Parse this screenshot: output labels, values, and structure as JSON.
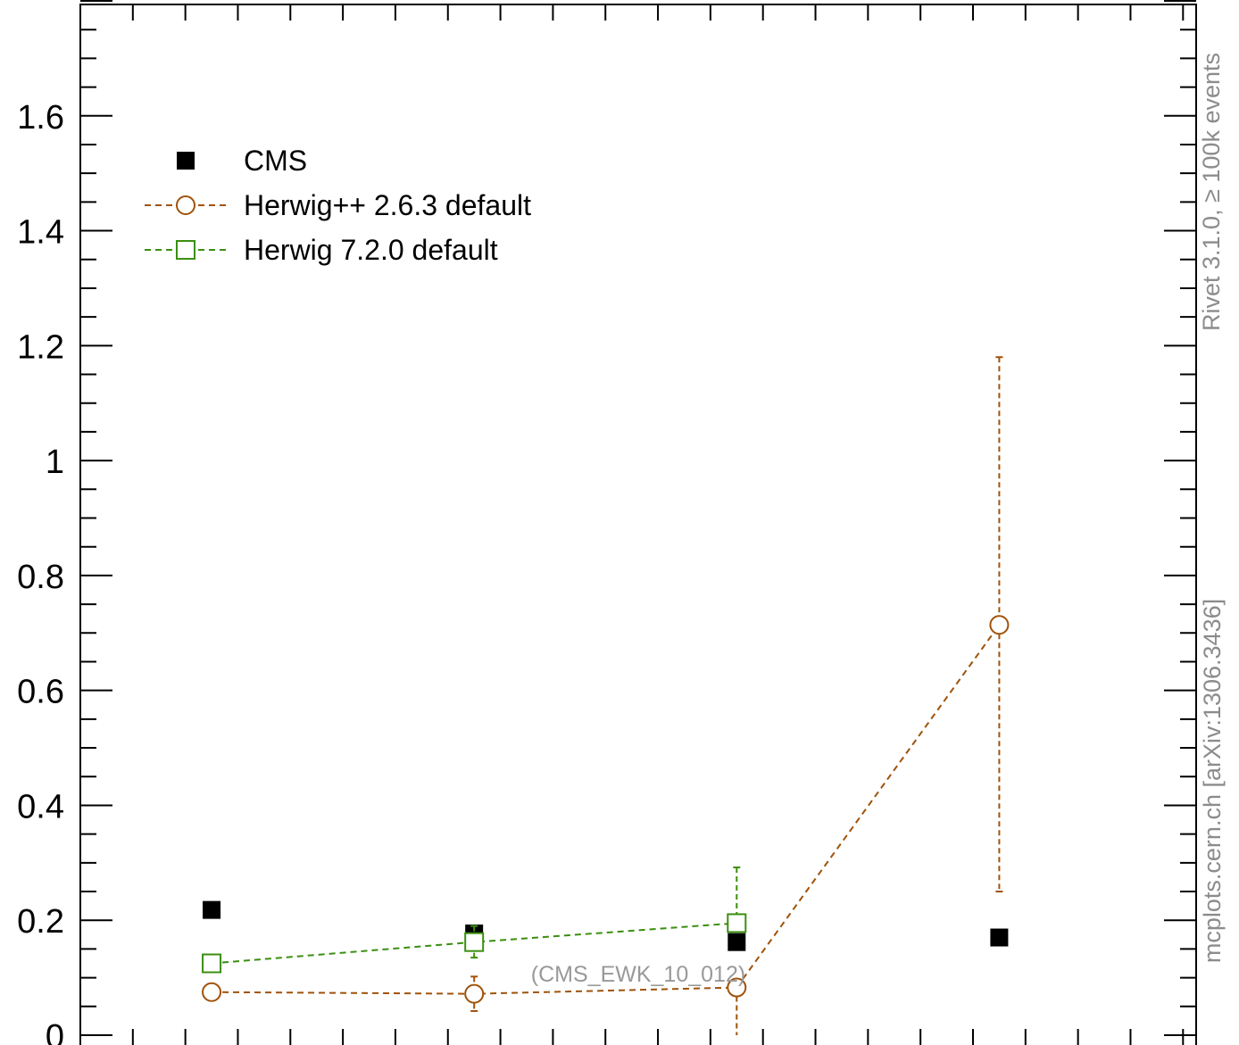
{
  "chart_data": {
    "type": "scatter",
    "xlim": [
      0.5,
      4.75
    ],
    "ylim": [
      0,
      1.8
    ],
    "y_ticks": [
      "0",
      "0.2",
      "0.4",
      "0.6",
      "0.8",
      "1",
      "1.2",
      "1.4",
      "1.6"
    ],
    "series": [
      {
        "name": "CMS",
        "color": "#000000",
        "marker": "filled-square",
        "line": "none",
        "x": [
          1,
          2,
          3,
          4
        ],
        "y": [
          0.218,
          0.177,
          0.162,
          0.17
        ]
      },
      {
        "name": "Herwig++ 2.6.3 default",
        "color": "#a0520a",
        "marker": "open-circle",
        "line": "dashed",
        "x": [
          1,
          2,
          3,
          4
        ],
        "y": [
          0.075,
          0.072,
          0.083,
          0.714
        ],
        "err_low": [
          0.075,
          0.042,
          0.0,
          0.25
        ],
        "err_high": [
          0.075,
          0.102,
          0.083,
          1.18
        ]
      },
      {
        "name": "Herwig 7.2.0 default",
        "color": "#3a8f0f",
        "marker": "open-square",
        "line": "dashed",
        "x": [
          1,
          2,
          3
        ],
        "y": [
          0.125,
          0.162,
          0.195
        ],
        "err_low": [
          0.125,
          0.135,
          0.195
        ],
        "err_high": [
          0.125,
          0.19,
          0.292
        ]
      }
    ],
    "annotation": "(CMS_EWK_10_012)",
    "legend_position": "top-left",
    "grid": false,
    "side_label_top": "Rivet 3.1.0, ≥ 100k events",
    "side_label_bottom": "mcplots.cern.ch [arXiv:1306.3436]"
  }
}
